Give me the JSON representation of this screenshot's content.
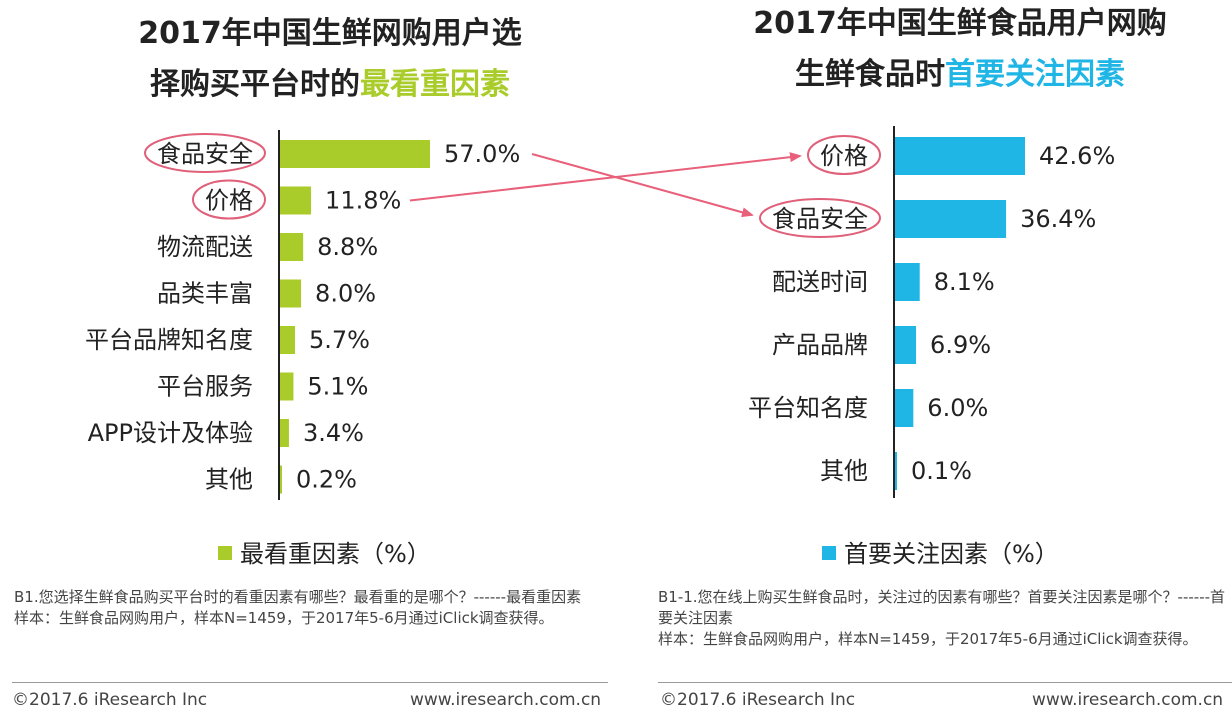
{
  "left": {
    "title_line1": "2017年中国生鲜网购用户选",
    "title_line2_prefix": "择购买平台时的",
    "title_highlight": "最看重因素",
    "legend": "最看重因素（%）",
    "note_question": "B1.您选择生鲜食品购买平台时的看重因素有哪些？最看重的是哪个？------最看重因素",
    "note_sample": "样本：生鲜食品网购用户，样本N=1459，于2017年5-6月通过iClick调查获得。",
    "copyright": "©2017.6 iResearch Inc",
    "website": "www.iresearch.com.cn"
  },
  "right": {
    "title_line1": "2017年中国生鲜食品用户网购",
    "title_line2_prefix": "生鲜食品时",
    "title_highlight": "首要关注因素",
    "legend": "首要关注因素（%）",
    "note_question": "B1-1.您在线上购买生鲜食品时，关注过的因素有哪些？首要关注因素是哪个？------首要关注因素",
    "note_sample": "样本：生鲜食品网购用户，样本N=1459，于2017年5-6月通过iClick调查获得。",
    "copyright": "©2017.6 iResearch Inc",
    "website": "www.iresearch.com.cn"
  },
  "colors": {
    "green": "#a9cc2a",
    "blue": "#1fb6e6",
    "circle": "#e0607a",
    "arrow": "#e8607a"
  },
  "chart_data": [
    {
      "type": "bar",
      "orientation": "horizontal",
      "title": "2017年中国生鲜网购用户选择购买平台时的最看重因素",
      "categories": [
        "食品安全",
        "价格",
        "物流配送",
        "品类丰富",
        "平台品牌知名度",
        "平台服务",
        "APP设计及体验",
        "其他"
      ],
      "values": [
        57.0,
        11.8,
        8.8,
        8.0,
        5.7,
        5.1,
        3.4,
        0.2
      ],
      "labels": [
        "57.0%",
        "11.8%",
        "8.8%",
        "8.0%",
        "5.7%",
        "5.1%",
        "3.4%",
        "0.2%"
      ],
      "highlighted": [
        "食品安全",
        "价格"
      ],
      "series_name": "最看重因素（%）",
      "unit": "%"
    },
    {
      "type": "bar",
      "orientation": "horizontal",
      "title": "2017年中国生鲜食品用户网购生鲜食品时首要关注因素",
      "categories": [
        "价格",
        "食品安全",
        "配送时间",
        "产品品牌",
        "平台知名度",
        "其他"
      ],
      "values": [
        42.6,
        36.4,
        8.1,
        6.9,
        6.0,
        0.1
      ],
      "labels": [
        "42.6%",
        "36.4%",
        "8.1%",
        "6.9%",
        "6.0%",
        "0.1%"
      ],
      "highlighted": [
        "价格",
        "食品安全"
      ],
      "series_name": "首要关注因素（%）",
      "unit": "%"
    }
  ]
}
